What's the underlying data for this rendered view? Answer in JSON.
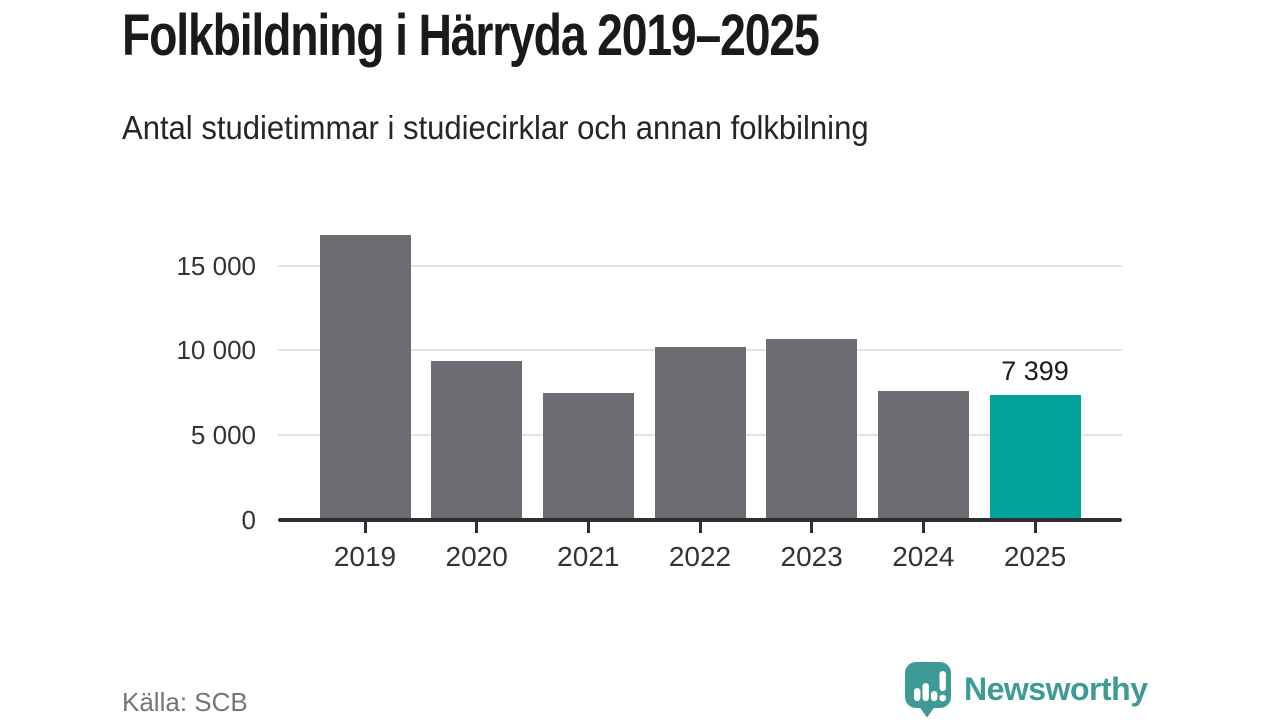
{
  "header": {
    "title": "Folkbildning i Härryda 2019–2025",
    "subtitle": "Antal studietimmar i studiecirklar och annan folkbilning"
  },
  "chart_data": {
    "type": "bar",
    "title": "Folkbildning i Härryda 2019–2025",
    "subtitle": "Antal studietimmar i studiecirklar och annan folkbilning",
    "categories": [
      "2019",
      "2020",
      "2021",
      "2022",
      "2023",
      "2024",
      "2025"
    ],
    "values": [
      16800,
      9400,
      7500,
      10200,
      10650,
      7600,
      7399
    ],
    "highlight_index": 6,
    "highlight_label": "7 399",
    "xlabel": "",
    "ylabel": "",
    "ylim": [
      0,
      17000
    ],
    "yticks": [
      {
        "value": 0,
        "label": "0"
      },
      {
        "value": 5000,
        "label": "5 000"
      },
      {
        "value": 10000,
        "label": "10 000"
      },
      {
        "value": 15000,
        "label": "15 000"
      }
    ],
    "grid": true,
    "legend": false,
    "colors": {
      "bar": "#6d6c72",
      "highlight": "#00a49a",
      "grid": "#e3e3e3",
      "axis": "#2e2d31",
      "tick_label": "#333333"
    }
  },
  "footer": {
    "source": "Källa: SCB",
    "brand": "Newsworthy",
    "brand_color": "#3d9a94",
    "logo_icon": "speech-bubble-bar-chart-exclamation"
  }
}
